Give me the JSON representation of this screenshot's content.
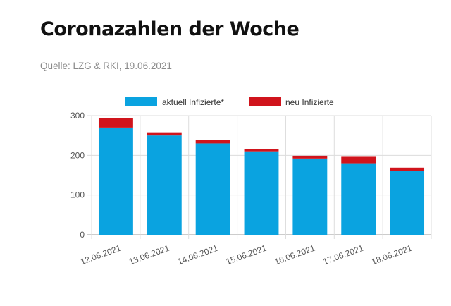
{
  "header": {
    "title": "Coronazahlen der Woche",
    "source": "Quelle: LZG & RKI, 19.06.2021"
  },
  "chart_data": {
    "type": "bar",
    "stacked": true,
    "categories": [
      "12.06.2021",
      "13.06.2021",
      "14.06.2021",
      "15.06.2021",
      "16.06.2021",
      "17.06.2021",
      "18.06.2021"
    ],
    "series": [
      {
        "name": "aktuell Infizierte*",
        "color": "#0aa3e0",
        "values": [
          270,
          250,
          230,
          210,
          192,
          180,
          160
        ]
      },
      {
        "name": "neu Infizierte",
        "color": "#d0141c",
        "values": [
          24,
          8,
          8,
          5,
          7,
          18,
          9
        ]
      }
    ],
    "yticks": [
      0,
      100,
      200,
      300
    ],
    "ylim": [
      0,
      300
    ],
    "grid": true,
    "legend_position": "top"
  }
}
